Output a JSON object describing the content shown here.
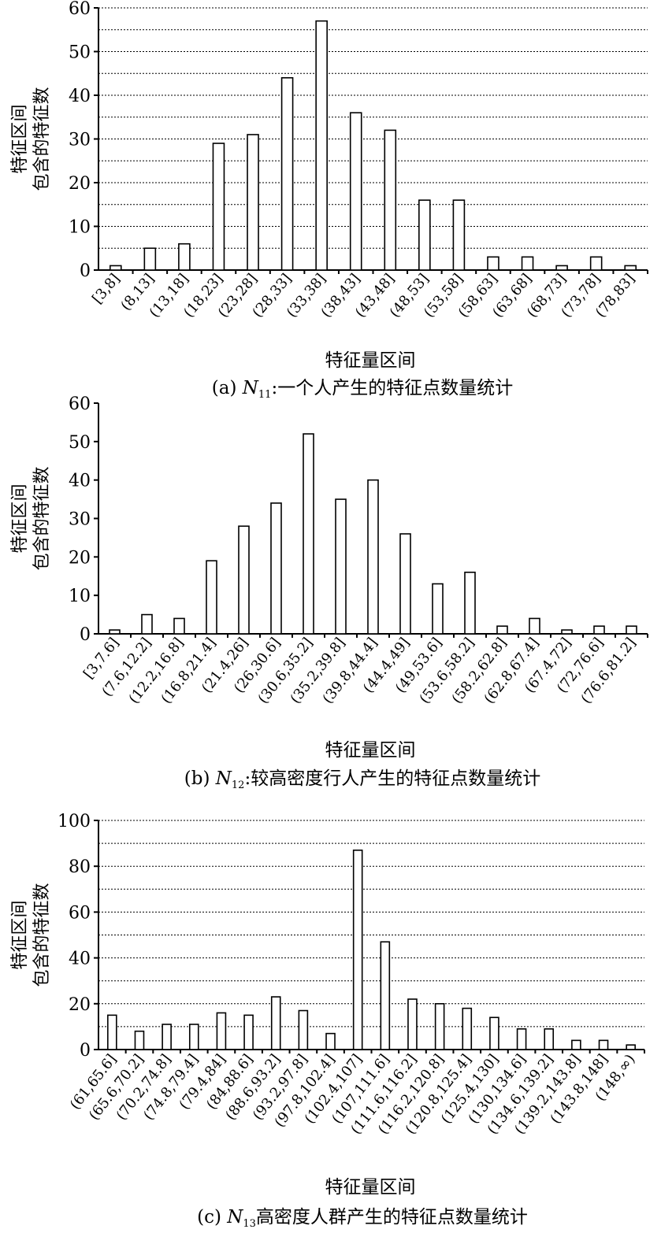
{
  "chart_data": [
    {
      "type": "bar",
      "caption_prefix": "(a) ",
      "caption_symbol": "N",
      "caption_subscript": "11",
      "caption_text": ":一个人产生的特征点数量统计",
      "xlabel": "特征量区间",
      "ylabel_line1": "特征区间",
      "ylabel_line2": "包含的特征数",
      "ylim": [
        0,
        60
      ],
      "yticks": [
        0,
        10,
        20,
        30,
        40,
        50,
        60
      ],
      "grid": true,
      "categories": [
        "[3,8]",
        "(8,13]",
        "(13,18]",
        "(18,23]",
        "(23,28]",
        "(28,33]",
        "(33,38]",
        "(38,43]",
        "(43,48]",
        "(48,53]",
        "(53,58]",
        "(58,63]",
        "(63,68]",
        "(68,73]",
        "(73,78]",
        "(78,83]"
      ],
      "values": [
        1,
        5,
        6,
        29,
        31,
        44,
        57,
        36,
        32,
        16,
        16,
        3,
        3,
        1,
        3,
        1
      ]
    },
    {
      "type": "bar",
      "caption_prefix": "(b) ",
      "caption_symbol": "N",
      "caption_subscript": "12",
      "caption_text": ":较高密度行人产生的特征点数量统计",
      "xlabel": "特征量区间",
      "ylabel_line1": "特征区间",
      "ylabel_line2": "包含的特征数",
      "ylim": [
        0,
        60
      ],
      "yticks": [
        0,
        10,
        20,
        30,
        40,
        50,
        60
      ],
      "grid": false,
      "categories": [
        "[3,7.6]",
        "(7.6,12.2]",
        "(12.2,16.8]",
        "(16.8,21.4]",
        "(21.4,26]",
        "(26,30.6]",
        "(30.6,35.2]",
        "(35.2,39.8]",
        "(39.8,44.4]",
        "(44.4,49]",
        "(49,53.6]",
        "(53.6,58.2]",
        "(58.2,62.8]",
        "(62.8,67.4]",
        "(67.4,72]",
        "(72,76.6]",
        "(76.6,81.2]"
      ],
      "values": [
        1,
        5,
        4,
        19,
        28,
        34,
        52,
        35,
        40,
        26,
        13,
        16,
        2,
        4,
        1,
        2,
        2
      ]
    },
    {
      "type": "bar",
      "caption_prefix": "(c) ",
      "caption_symbol": "N",
      "caption_subscript": "13",
      "caption_text": "高密度人群产生的特征点数量统计",
      "xlabel": "特征量区间",
      "ylabel_line1": "特征区间",
      "ylabel_line2": "包含的特征数",
      "ylim": [
        0,
        100
      ],
      "yticks": [
        0,
        20,
        40,
        60,
        80,
        100
      ],
      "grid": true,
      "categories": [
        "(61,65.6]",
        "(65.6,70.2]",
        "(70.2,74.8]",
        "(74.8,79.4]",
        "(79.4,84]",
        "(84,88.6]",
        "(88.6,93.2]",
        "(93.2,97.8]",
        "(97.8,102.4]",
        "(102.4,107]",
        "(107,111.6]",
        "(111.6,116.2]",
        "(116.2,120.8]",
        "(120.8,125.4]",
        "(125.4,130]",
        "(130,134.6]",
        "(134.6,139.2]",
        "(139.2,143.8]",
        "(143.8,148]",
        "(148,∞)"
      ],
      "values": [
        15,
        8,
        11,
        11,
        16,
        15,
        23,
        17,
        7,
        87,
        47,
        22,
        20,
        18,
        14,
        9,
        9,
        4,
        4,
        2
      ]
    }
  ]
}
